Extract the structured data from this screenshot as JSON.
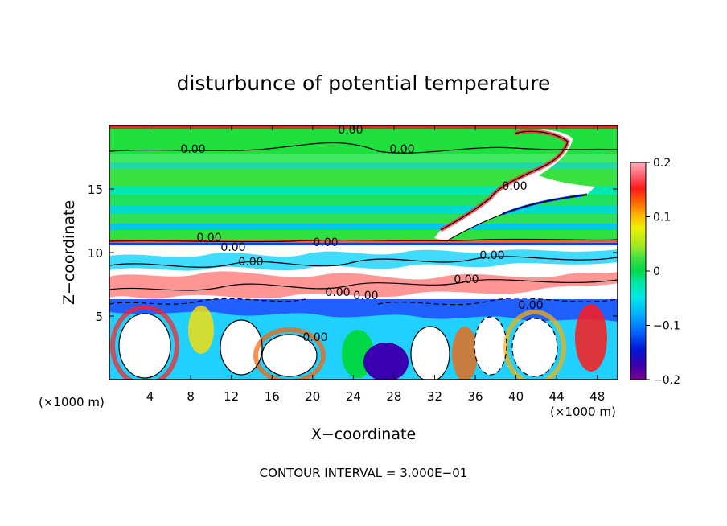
{
  "chart_data": {
    "type": "heatmap",
    "title": "disturbunce of potential temperature",
    "xlabel": "X−coordinate",
    "ylabel": "Z−coordinate",
    "x_unit": "(×1000 m)",
    "y_unit": "(×1000 m)",
    "xlim": [
      0,
      50
    ],
    "ylim": [
      0,
      20
    ],
    "x_ticks": [
      4,
      8,
      12,
      16,
      20,
      24,
      28,
      32,
      36,
      40,
      44,
      48
    ],
    "y_ticks": [
      5,
      10,
      15
    ],
    "x_tick_labels": [
      "4",
      "8",
      "12",
      "16",
      "20",
      "24",
      "28",
      "32",
      "36",
      "40",
      "44",
      "48"
    ],
    "y_tick_labels": [
      "5",
      "10",
      "15"
    ],
    "colorbar": {
      "range": [
        -0.2,
        0.2
      ],
      "tick_values": [
        0.2,
        0.1,
        0,
        -0.1,
        -0.2
      ],
      "tick_labels": [
        "0.2",
        "0.1",
        "0",
        "−0.1",
        "−0.2"
      ],
      "colors": [
        "#7a0090",
        "#3a00b0",
        "#0018d8",
        "#0066ff",
        "#00b0ff",
        "#00e8e8",
        "#00e8a0",
        "#00d848",
        "#40e040",
        "#a8e820",
        "#f0f000",
        "#ffb000",
        "#ff6000",
        "#ff1a1a",
        "#ff6070",
        "#ffb0b8"
      ]
    },
    "contour_labels": [
      "0.00",
      "0.00",
      "0.00",
      "0.00",
      "0.00",
      "0.00",
      "0.00",
      "0.00",
      "0.00",
      "0.00",
      "0.00",
      "0.00",
      "0.00",
      "0.00"
    ],
    "contour_interval_text": "CONTOUR INTERVAL = 3.000E−01"
  }
}
